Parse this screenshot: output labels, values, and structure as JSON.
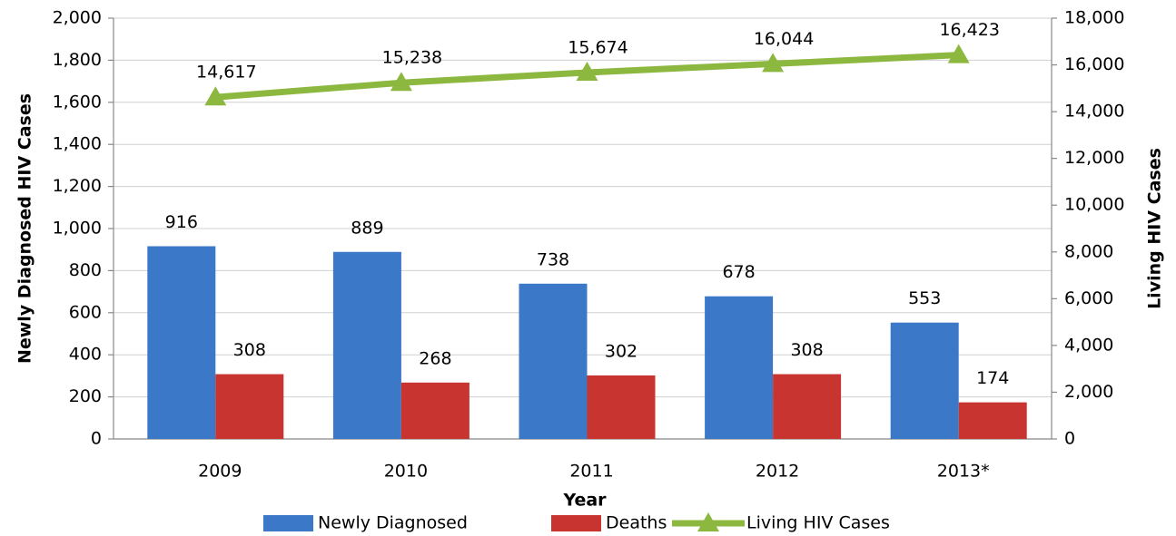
{
  "chart_data": {
    "type": "bar-line",
    "categories": [
      "2009",
      "2010",
      "2011",
      "2012",
      "2013*"
    ],
    "xlabel": "Year",
    "ylabel": "Newly Diagnosed HIV Cases",
    "y2label": "Living HIV Cases",
    "series": [
      {
        "name": "Newly Diagnosed",
        "type": "bar",
        "color": "#3b78c8",
        "values": [
          916,
          889,
          738,
          678,
          553
        ]
      },
      {
        "name": "Deaths",
        "type": "bar",
        "color": "#c8342f",
        "values": [
          308,
          268,
          302,
          308,
          174
        ]
      },
      {
        "name": "Living HIV Cases",
        "type": "line",
        "axis": "y2",
        "color": "#8db83f",
        "values": [
          14617,
          15238,
          15674,
          16044,
          16423
        ],
        "value_labels": [
          "14,617",
          "15,238",
          "15,674",
          "16,044",
          "16,423"
        ]
      }
    ],
    "ylim": [
      0,
      2000
    ],
    "yticks": [
      0,
      200,
      400,
      600,
      800,
      {
        "value": 1000,
        "label": "1,000"
      },
      {
        "value": 1200,
        "label": "1,200"
      },
      {
        "value": 1400,
        "label": "1,400"
      },
      {
        "value": 1600,
        "label": "1,600"
      },
      {
        "value": 1800,
        "label": "1,800"
      },
      {
        "value": 2000,
        "label": "2,000"
      }
    ],
    "y2lim": [
      0,
      18000
    ],
    "y2ticks": [
      0,
      {
        "value": 2000,
        "label": "2,000"
      },
      {
        "value": 4000,
        "label": "4,000"
      },
      {
        "value": 6000,
        "label": "6,000"
      },
      {
        "value": 8000,
        "label": "8,000"
      },
      {
        "value": 10000,
        "label": "10,000"
      },
      {
        "value": 12000,
        "label": "12,000"
      },
      {
        "value": 14000,
        "label": "14,000"
      },
      {
        "value": 16000,
        "label": "16,000"
      },
      {
        "value": 18000,
        "label": "18,000"
      }
    ],
    "grid": true
  }
}
